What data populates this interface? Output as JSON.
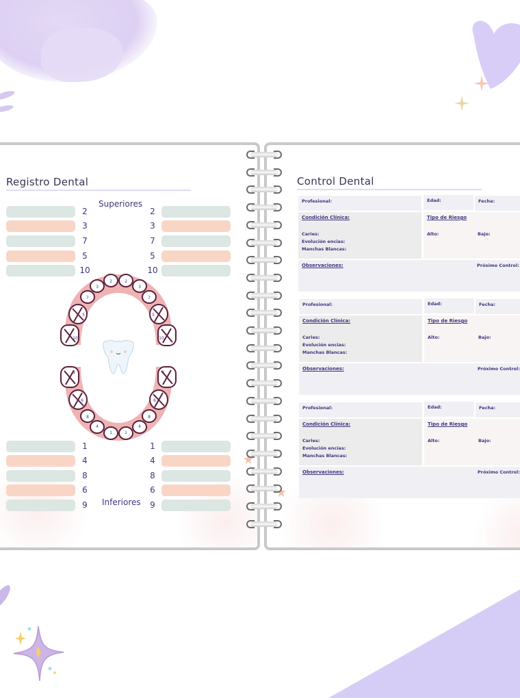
{
  "left_page": {
    "title": "Registro Dental",
    "upper_label": "Superiores",
    "lower_label": "Inferiores",
    "upper_numbers": [
      "2",
      "3",
      "7",
      "5",
      "10"
    ],
    "lower_numbers": [
      "1",
      "4",
      "8",
      "6",
      "9"
    ],
    "bar_colors": [
      "#dce6e3",
      "#f9d5c6"
    ]
  },
  "right_page": {
    "title": "Control Dental",
    "records": [
      {
        "profesional": "Profesional:",
        "edad": "Edad:",
        "fecha": "Fecha:",
        "condicion": "Condición Clínica:",
        "caries": "Caries:",
        "evolucion": "Evolución encias:",
        "manchas": "Manchas Blancas:",
        "riesgo": "Tipo de Riesgo",
        "alto": "Alto:",
        "bajo": "Bajo:",
        "observaciones": "Observaciones:",
        "proximo": "Próximo Control:"
      },
      {
        "profesional": "Profesional:",
        "edad": "Edad:",
        "fecha": "Fecha:",
        "condicion": "Condición Clínica:",
        "caries": "Caries:",
        "evolucion": "Evolución encias:",
        "manchas": "Manchas Blancas:",
        "riesgo": "Tipo de Riesgo",
        "alto": "Alto:",
        "bajo": "Bajo:",
        "observaciones": "Observaciones:",
        "proximo": "Próximo Control:"
      },
      {
        "profesional": "Profesional:",
        "edad": "Edad:",
        "fecha": "Fecha:",
        "condicion": "Condición Clínica:",
        "caries": "Caries:",
        "evolucion": "Evolución encias:",
        "manchas": "Manchas Blancas:",
        "riesgo": "Tipo de Riesgo",
        "alto": "Alto:",
        "bajo": "Bajo:",
        "observaciones": "Observaciones:",
        "proximo": "Próximo Control:"
      }
    ]
  },
  "diagram": {
    "upper_teeth_labels": [
      "2",
      "3",
      "7",
      "5",
      "10"
    ],
    "lower_teeth_labels": [
      "1",
      "4",
      "8",
      "6",
      "9"
    ],
    "crossed_teeth": [
      "5",
      "10",
      "9",
      "6"
    ],
    "gum_color": "#eeb3b3",
    "tooth_outline": "#5a1f3a"
  },
  "colors": {
    "accent_purple": "#d9cdf3",
    "text_navy": "#3d3580",
    "binding_grey": "#c8c8c8"
  }
}
